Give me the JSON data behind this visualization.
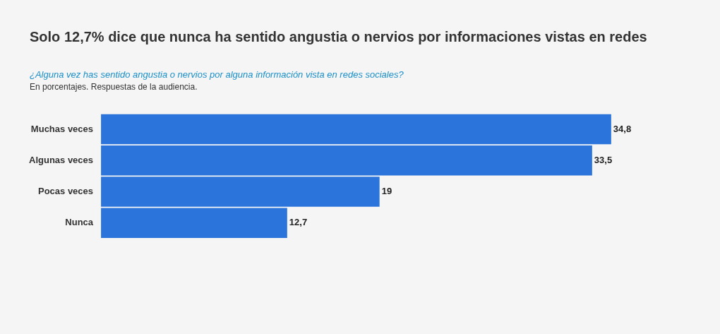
{
  "chart_data": {
    "type": "bar",
    "orientation": "horizontal",
    "title": "Solo 12,7% dice que nunca ha sentido angustia o nervios por informaciones vistas en redes",
    "subtitle": "¿Alguna vez has sentido angustia o nervios por alguna información vista en redes sociales?",
    "annotations": [
      "En porcentajes. Respuestas de la audiencia."
    ],
    "categories": [
      "Muchas veces",
      "Algunas veces",
      "Pocas veces",
      "Nunca"
    ],
    "values": [
      34.8,
      33.5,
      19,
      12.7
    ],
    "value_labels": [
      "34,8",
      "33,5",
      "19",
      "12,7"
    ],
    "color": "#2a74dc",
    "legend": false
  }
}
